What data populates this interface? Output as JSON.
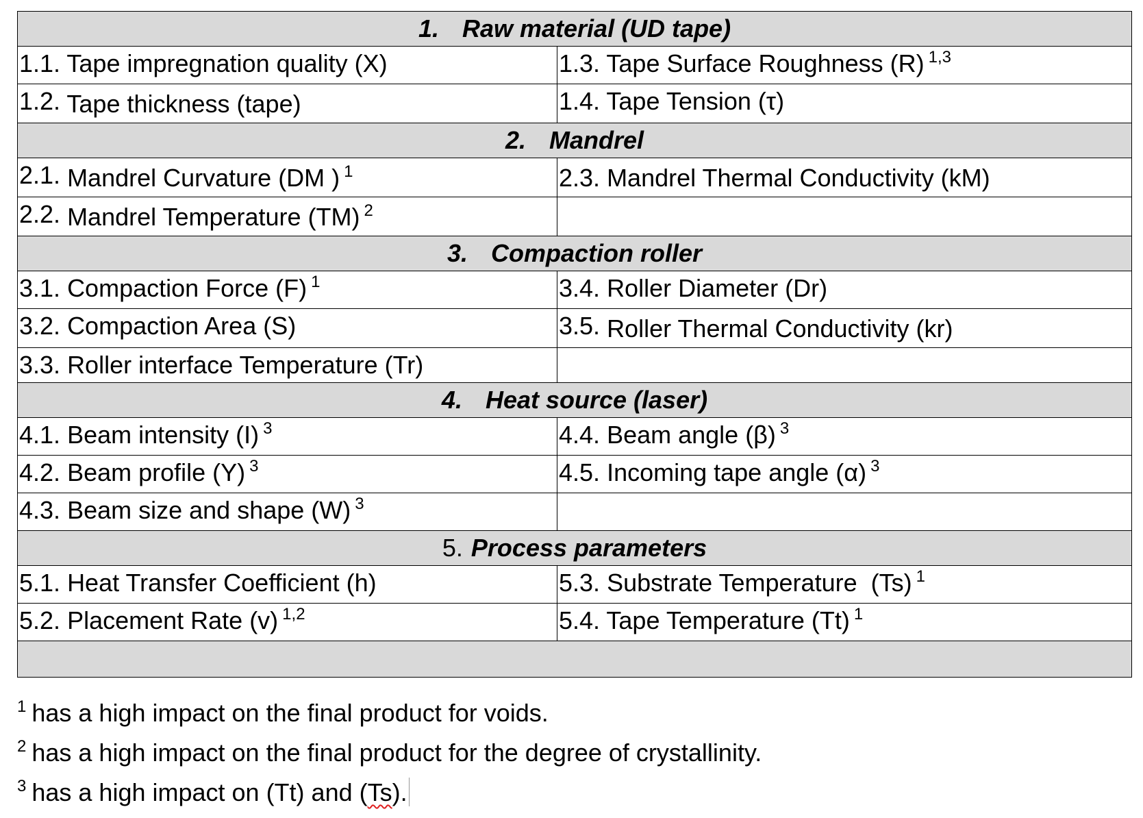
{
  "sections": [
    {
      "number": "1.",
      "title": "Raw material (UD tape)",
      "rows": [
        [
          {
            "num": "1.1.",
            "text": "Tape impregnation quality (X)",
            "sup": ""
          },
          {
            "num": "1.3.",
            "text": "Tape Surface Roughness (R)",
            "sup": "1,3"
          }
        ],
        [
          {
            "num": "1.2.",
            "text": "Tape thickness (tape)",
            "sup": ""
          },
          {
            "num": "1.4.",
            "text": "Tape Tension (τ)",
            "sup": ""
          }
        ]
      ]
    },
    {
      "number": "2.",
      "title": "Mandrel",
      "rows": [
        [
          {
            "num": "2.1.",
            "text": "Mandrel Curvature (DM )",
            "sup": "1"
          },
          {
            "num": "2.3.",
            "text": "Mandrel Thermal Conductivity (kM)",
            "sup": ""
          }
        ],
        [
          {
            "num": "2.2.",
            "text": "Mandrel Temperature (TM)",
            "sup": "2"
          },
          {
            "num": "",
            "text": "",
            "sup": ""
          }
        ]
      ]
    },
    {
      "number": "3.",
      "title": "Compaction roller",
      "rows": [
        [
          {
            "num": "3.1.",
            "text": "Compaction Force (F)",
            "sup": "1"
          },
          {
            "num": "3.4.",
            "text": "Roller Diameter (Dr)",
            "sup": ""
          }
        ],
        [
          {
            "num": "3.2.",
            "text": " Compaction Area (S)",
            "sup": ""
          },
          {
            "num": "3.5.",
            "text": "Roller Thermal Conductivity (kr)",
            "sup": ""
          }
        ],
        [
          {
            "num": "3.3.",
            "text": "Roller interface Temperature (Tr)",
            "sup": ""
          },
          {
            "num": "",
            "text": "",
            "sup": ""
          }
        ]
      ]
    },
    {
      "number": "4.",
      "title": "Heat source (laser)",
      "rows": [
        [
          {
            "num": "4.1.",
            "text": "Beam intensity (I)",
            "sup": "3"
          },
          {
            "num": "4.4.",
            "text": "Beam angle (β)",
            "sup": "3"
          }
        ],
        [
          {
            "num": "4.2.",
            "text": " Beam profile (Y)",
            "sup": "3"
          },
          {
            "num": "4.5.",
            "text": "Incoming tape angle (α)",
            "sup": "3"
          }
        ],
        [
          {
            "num": "4.3.",
            "text": " Beam size and shape (W)",
            "sup": "3"
          },
          {
            "num": "",
            "text": "",
            "sup": ""
          }
        ]
      ]
    },
    {
      "number": "5.",
      "title": "Process parameters",
      "rows": [
        [
          {
            "num": "5.1.",
            "text": "Heat Transfer Coefficient (h)",
            "sup": ""
          },
          {
            "num": "5.3.",
            "text": "Substrate Temperature  (Ts)",
            "sup": "1"
          }
        ],
        [
          {
            "num": "5.2.",
            "text": "Placement Rate (v)",
            "sup": "1,2"
          },
          {
            "num": "5.4.",
            "text": "Tape Temperature (Tt)",
            "sup": "1"
          }
        ]
      ]
    }
  ],
  "footnotes": [
    {
      "mark": "1",
      "text": "has a high impact on the final product for voids."
    },
    {
      "mark": "2",
      "text": "has a high impact on the final product for the degree of crystallinity."
    },
    {
      "mark": "3",
      "text_before": "has a high impact on (Tt) and (",
      "text_flagged": "Ts",
      "text_after": ")."
    }
  ],
  "colors": {
    "header_fill": "#d9d9d9",
    "spellcheck_underline": "#e02020"
  }
}
